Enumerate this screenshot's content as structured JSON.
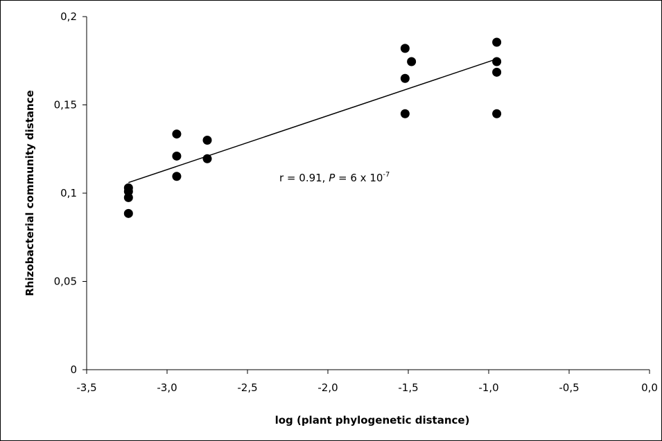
{
  "chart_data": {
    "type": "scatter",
    "title": "",
    "xlabel": "log (plant phylogenetic distance)",
    "ylabel": "Rhizobacterial community distance",
    "xlim": [
      -3.5,
      0.0
    ],
    "ylim": [
      0,
      0.2
    ],
    "x_ticks": [
      -3.5,
      -3.0,
      -2.5,
      -2.0,
      -1.5,
      -1.0,
      -0.5,
      0.0
    ],
    "x_tick_labels": [
      "-3,5",
      "-3,0",
      "-2,5",
      "-2,0",
      "-1,5",
      "-1,0",
      "-0,5",
      "0,0"
    ],
    "y_ticks": [
      0,
      0.05,
      0.1,
      0.15,
      0.2
    ],
    "y_tick_labels": [
      "0",
      "0,05",
      "0,1",
      "0,15",
      "0,2"
    ],
    "grid": false,
    "points": [
      {
        "x": -3.24,
        "y": 0.103
      },
      {
        "x": -3.24,
        "y": 0.101
      },
      {
        "x": -3.24,
        "y": 0.0975
      },
      {
        "x": -3.24,
        "y": 0.0885
      },
      {
        "x": -2.94,
        "y": 0.1335
      },
      {
        "x": -2.94,
        "y": 0.121
      },
      {
        "x": -2.94,
        "y": 0.1095
      },
      {
        "x": -2.75,
        "y": 0.13
      },
      {
        "x": -2.75,
        "y": 0.1195
      },
      {
        "x": -1.52,
        "y": 0.182
      },
      {
        "x": -1.48,
        "y": 0.1745
      },
      {
        "x": -1.52,
        "y": 0.165
      },
      {
        "x": -1.52,
        "y": 0.145
      },
      {
        "x": -0.95,
        "y": 0.1855
      },
      {
        "x": -0.95,
        "y": 0.1745
      },
      {
        "x": -0.95,
        "y": 0.1685
      },
      {
        "x": -0.95,
        "y": 0.145
      }
    ],
    "trendline": {
      "x": [
        -3.24,
        -0.95
      ],
      "y": [
        0.106,
        0.176
      ]
    },
    "annotation": {
      "prefix": "r = 0.91, ",
      "italic": "P",
      "mid": " = 6 x 10",
      "sup": "-7"
    }
  }
}
